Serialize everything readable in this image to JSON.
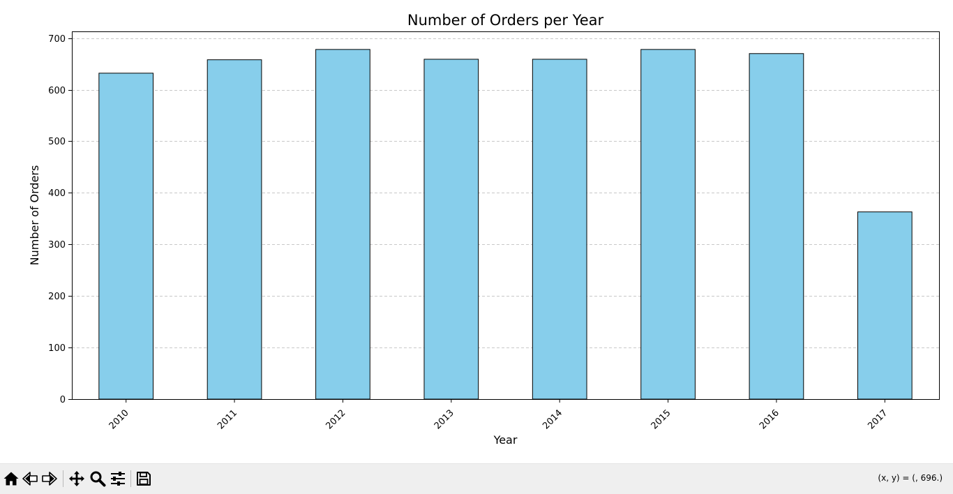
{
  "chart_data": {
    "type": "bar",
    "title": "Number of Orders per Year",
    "xlabel": "Year",
    "ylabel": "Number of Orders",
    "categories": [
      "2010",
      "2011",
      "2012",
      "2013",
      "2014",
      "2015",
      "2016",
      "2017"
    ],
    "values": [
      632,
      658,
      678,
      659,
      659,
      678,
      670,
      363
    ],
    "ylim": [
      0,
      713
    ],
    "yticks": [
      0,
      100,
      200,
      300,
      400,
      500,
      600,
      700
    ],
    "xtick_rotation": 45,
    "grid": "y-axis, dashed",
    "legend": "none",
    "bar_color": "#87ceeb",
    "bar_edge_color": "#000000"
  },
  "toolbar": {
    "buttons": [
      {
        "name": "home-button",
        "icon": "home-icon"
      },
      {
        "name": "back-button",
        "icon": "back-arrow-icon"
      },
      {
        "name": "forward-button",
        "icon": "forward-arrow-icon"
      },
      {
        "name": "pan-button",
        "icon": "move-icon"
      },
      {
        "name": "zoom-button",
        "icon": "magnifier-icon"
      },
      {
        "name": "configure-subplots-button",
        "icon": "sliders-icon"
      },
      {
        "name": "save-button",
        "icon": "floppy-disk-icon"
      }
    ],
    "coordinates": "(x, y) = (, 696.)"
  }
}
